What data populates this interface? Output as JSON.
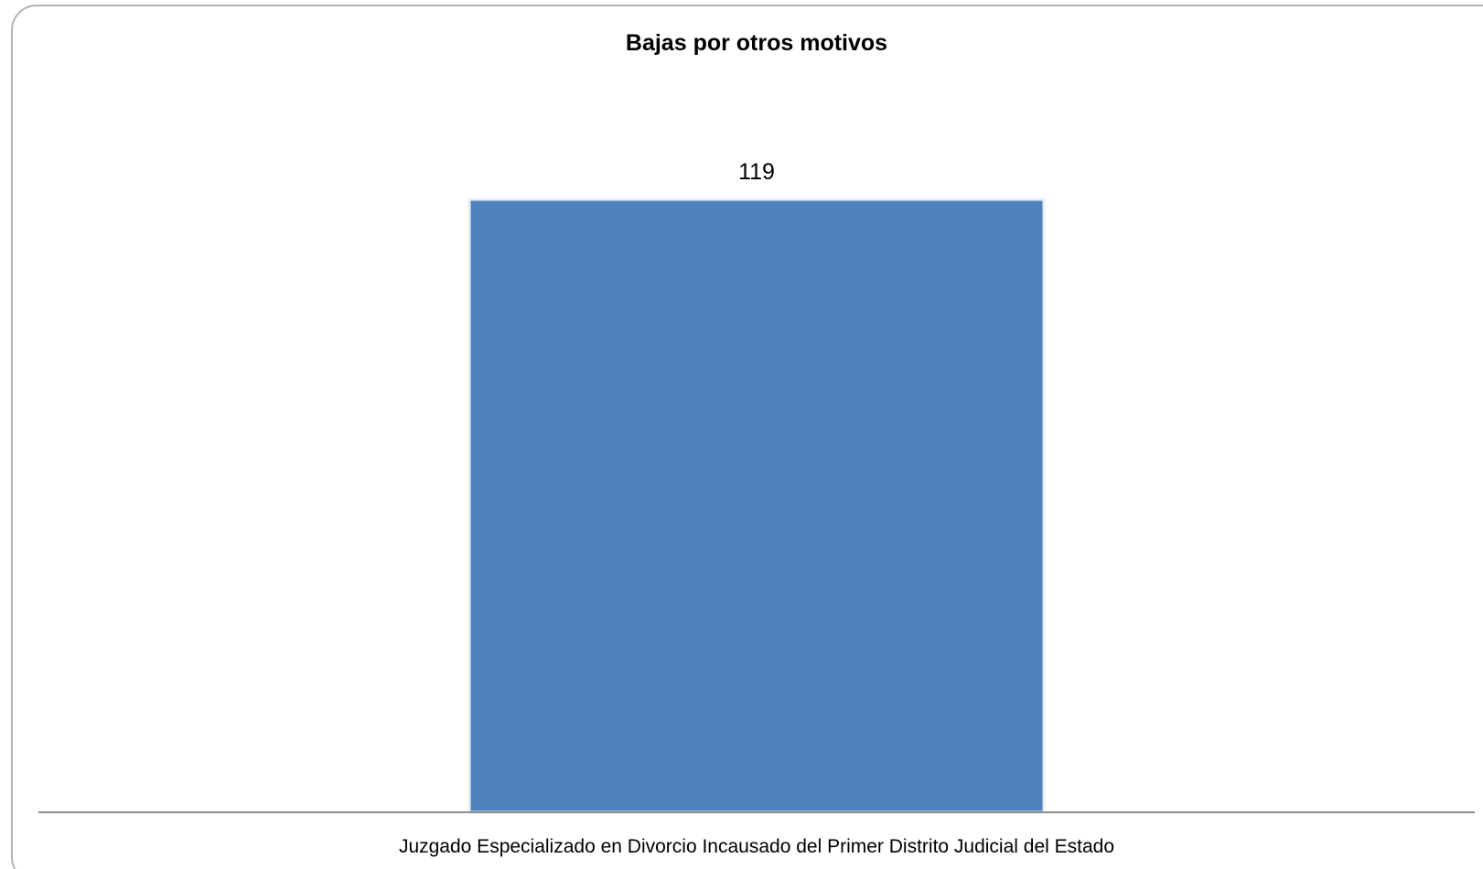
{
  "chart_data": {
    "type": "bar",
    "title": "Bajas  por otros motivos",
    "categories": [
      "Juzgado Especializado en Divorcio Incausado del Primer Distrito Judicial del Estado"
    ],
    "values": [
      119
    ],
    "data_labels": [
      "119"
    ],
    "ylim": [
      0,
      119
    ],
    "grid": false,
    "legend": "none",
    "bar_color": "#4f81bd",
    "bar_edge_color": "#e8edf5",
    "axis_color": "#8c8c8c"
  }
}
